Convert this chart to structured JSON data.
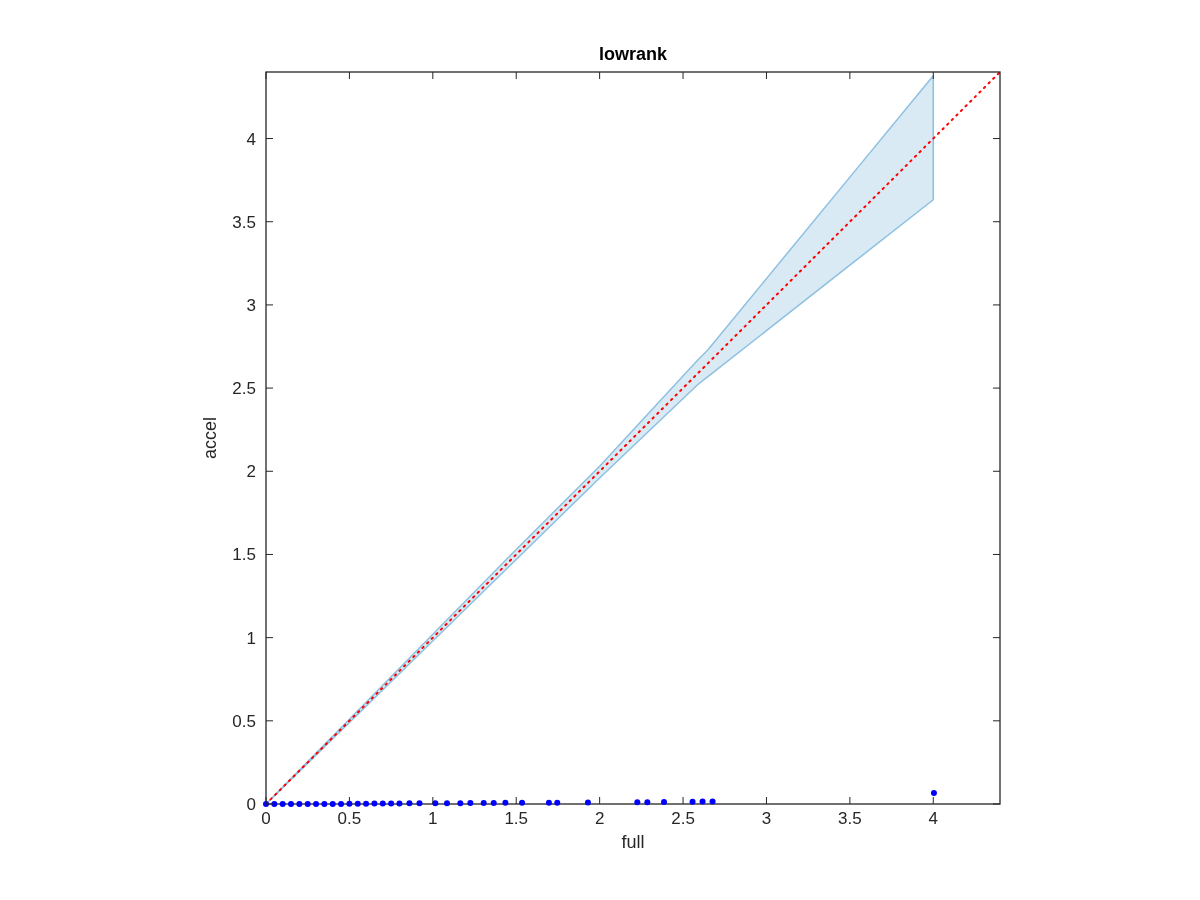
{
  "chart_data": {
    "type": "scatter",
    "title": "lowrank",
    "xlabel": "full",
    "ylabel": "accel",
    "xlim": [
      0,
      4.4
    ],
    "ylim": [
      0,
      4.4
    ],
    "xticks": [
      0,
      0.5,
      1,
      1.5,
      2,
      2.5,
      3,
      3.5,
      4
    ],
    "yticks": [
      0,
      0.5,
      1,
      1.5,
      2,
      2.5,
      3,
      3.5,
      4
    ],
    "grid": false,
    "series": [
      {
        "type": "scatter",
        "color": "#0000ff",
        "marker": "circle",
        "x": [
          0,
          0.05,
          0.1,
          0.15,
          0.2,
          0.25,
          0.3,
          0.35,
          0.4,
          0.45,
          0.5,
          0.55,
          0.6,
          0.65,
          0.7,
          0.75,
          0.8,
          0.86,
          0.92,
          1.015,
          1.085,
          1.165,
          1.225,
          1.305,
          1.365,
          1.435,
          1.535,
          1.696,
          1.746,
          1.93,
          2.226,
          2.286,
          2.386,
          2.557,
          2.617,
          2.677,
          4.004
        ],
        "values": [
          0,
          0,
          0,
          0,
          0,
          0,
          0,
          0,
          0,
          0,
          0.002,
          0.002,
          0.002,
          0.003,
          0.003,
          0.003,
          0.003,
          0.004,
          0.004,
          0.005,
          0.005,
          0.005,
          0.006,
          0.006,
          0.006,
          0.007,
          0.007,
          0.008,
          0.008,
          0.009,
          0.011,
          0.011,
          0.012,
          0.014,
          0.015,
          0.015,
          0.066
        ]
      },
      {
        "type": "line",
        "color": "#ff0000",
        "line_style": "dotted",
        "marker": "none",
        "x": [
          0,
          4.4
        ],
        "values": [
          0,
          4.4
        ]
      },
      {
        "type": "line",
        "color": "#8dc0e0",
        "x": [
          0,
          0.5,
          1,
          1.5,
          2,
          2.587,
          2.647,
          3,
          3.5,
          4
        ],
        "values": [
          null,
          null,
          null,
          null,
          null,
          null,
          null,
          null,
          null,
          null
        ],
        "upper": [
          0,
          0.51,
          1.02,
          1.53,
          2.03,
          2.667,
          2.727,
          3.158,
          3.768,
          4.378
        ],
        "lower": [
          0,
          0.49,
          0.98,
          1.47,
          1.96,
          2.52,
          2.567,
          2.845,
          3.239,
          3.632
        ]
      }
    ]
  }
}
